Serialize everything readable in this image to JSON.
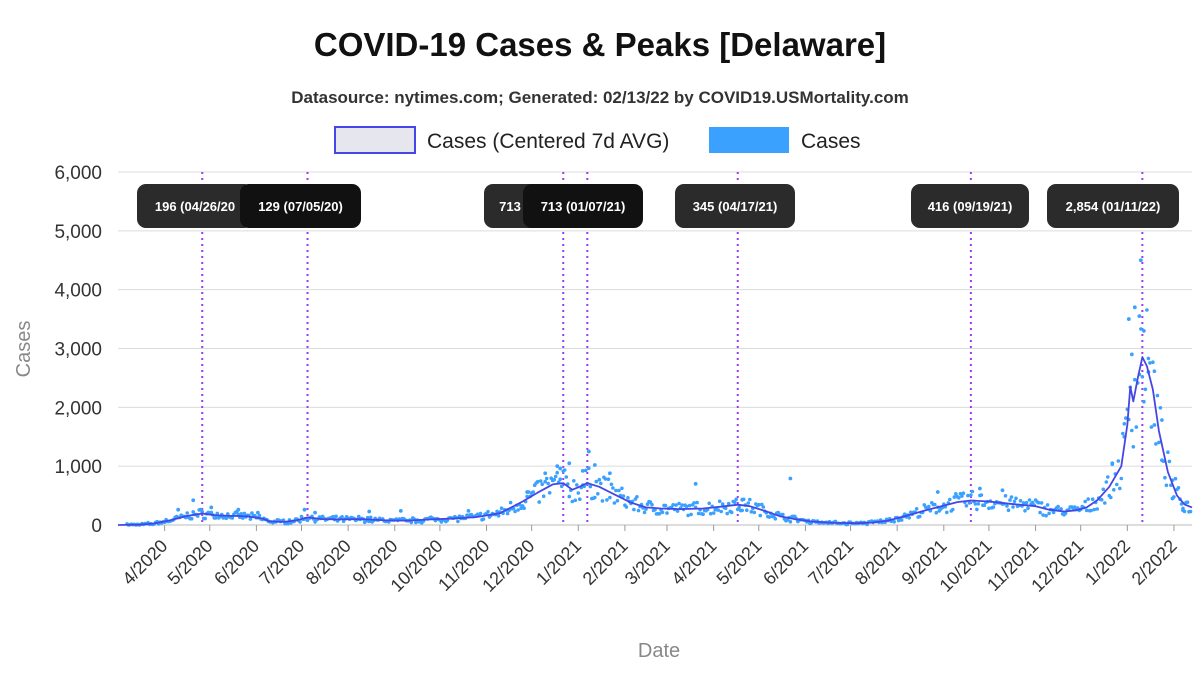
{
  "chart_data": {
    "type": "line",
    "title": "COVID-19 Cases & Peaks [Delaware]",
    "subtitle": "Datasource: nytimes.com; Generated: 02/13/22 by COVID19.USMortality.com",
    "xlabel": "Date",
    "ylabel": "Cases",
    "ylim": [
      0,
      6000
    ],
    "yticks": [
      0,
      1000,
      2000,
      3000,
      4000,
      5000,
      6000
    ],
    "ytick_labels": [
      "0",
      "1,000",
      "2,000",
      "3,000",
      "4,000",
      "5,000",
      "6,000"
    ],
    "xlim": [
      "2020-03-01",
      "2022-02-13"
    ],
    "xticks": [
      "2020-04-01",
      "2020-05-01",
      "2020-06-01",
      "2020-07-01",
      "2020-08-01",
      "2020-09-01",
      "2020-10-01",
      "2020-11-01",
      "2020-12-01",
      "2021-01-01",
      "2021-02-01",
      "2021-03-01",
      "2021-04-01",
      "2021-05-01",
      "2021-06-01",
      "2021-07-01",
      "2021-08-01",
      "2021-09-01",
      "2021-10-01",
      "2021-11-01",
      "2021-12-01",
      "2022-01-01",
      "2022-02-01"
    ],
    "xtick_labels": [
      "4/2020",
      "5/2020",
      "6/2020",
      "7/2020",
      "8/2020",
      "9/2020",
      "10/2020",
      "11/2020",
      "12/2020",
      "1/2021",
      "2/2021",
      "3/2021",
      "4/2021",
      "5/2021",
      "6/2021",
      "7/2021",
      "8/2021",
      "9/2021",
      "10/2021",
      "11/2021",
      "12/2021",
      "1/2022",
      "2/2022"
    ],
    "grid": "horizontal",
    "legend_position": "top-center",
    "colors": {
      "avg_line": "#4646e6",
      "points": "#3aa1ff",
      "peak_line": "#9b3cf0",
      "label_bg": "#2b2b2b"
    },
    "series": [
      {
        "name": "Cases (Centered 7d AVG)",
        "kind": "line",
        "points": [
          [
            "2020-03-01",
            0
          ],
          [
            "2020-03-15",
            5
          ],
          [
            "2020-03-25",
            25
          ],
          [
            "2020-04-05",
            80
          ],
          [
            "2020-04-15",
            150
          ],
          [
            "2020-04-26",
            196
          ],
          [
            "2020-05-05",
            165
          ],
          [
            "2020-05-15",
            155
          ],
          [
            "2020-05-25",
            150
          ],
          [
            "2020-06-05",
            110
          ],
          [
            "2020-06-10",
            60
          ],
          [
            "2020-06-20",
            55
          ],
          [
            "2020-06-28",
            80
          ],
          [
            "2020-07-05",
            129
          ],
          [
            "2020-07-15",
            100
          ],
          [
            "2020-07-25",
            95
          ],
          [
            "2020-08-10",
            100
          ],
          [
            "2020-08-25",
            80
          ],
          [
            "2020-09-10",
            75
          ],
          [
            "2020-09-25",
            95
          ],
          [
            "2020-10-10",
            110
          ],
          [
            "2020-10-25",
            135
          ],
          [
            "2020-11-10",
            200
          ],
          [
            "2020-11-25",
            400
          ],
          [
            "2020-12-05",
            550
          ],
          [
            "2020-12-15",
            690
          ],
          [
            "2020-12-22",
            713
          ],
          [
            "2020-12-28",
            600
          ],
          [
            "2021-01-01",
            640
          ],
          [
            "2021-01-07",
            713
          ],
          [
            "2021-01-15",
            650
          ],
          [
            "2021-01-25",
            520
          ],
          [
            "2021-02-05",
            380
          ],
          [
            "2021-02-15",
            300
          ],
          [
            "2021-02-25",
            280
          ],
          [
            "2021-03-10",
            270
          ],
          [
            "2021-03-25",
            280
          ],
          [
            "2021-04-05",
            310
          ],
          [
            "2021-04-17",
            345
          ],
          [
            "2021-04-25",
            320
          ],
          [
            "2021-05-05",
            240
          ],
          [
            "2021-05-15",
            150
          ],
          [
            "2021-05-25",
            100
          ],
          [
            "2021-06-05",
            60
          ],
          [
            "2021-06-20",
            35
          ],
          [
            "2021-07-05",
            30
          ],
          [
            "2021-07-15",
            40
          ],
          [
            "2021-07-25",
            70
          ],
          [
            "2021-08-05",
            140
          ],
          [
            "2021-08-20",
            250
          ],
          [
            "2021-09-01",
            330
          ],
          [
            "2021-09-10",
            390
          ],
          [
            "2021-09-19",
            416
          ],
          [
            "2021-10-01",
            400
          ],
          [
            "2021-10-15",
            360
          ],
          [
            "2021-11-01",
            320
          ],
          [
            "2021-11-10",
            260
          ],
          [
            "2021-11-20",
            230
          ],
          [
            "2021-11-28",
            250
          ],
          [
            "2021-12-05",
            300
          ],
          [
            "2021-12-12",
            420
          ],
          [
            "2021-12-20",
            650
          ],
          [
            "2021-12-28",
            1000
          ],
          [
            "2022-01-01",
            1700
          ],
          [
            "2022-01-03",
            2350
          ],
          [
            "2022-01-05",
            2100
          ],
          [
            "2022-01-08",
            2500
          ],
          [
            "2022-01-11",
            2854
          ],
          [
            "2022-01-14",
            2700
          ],
          [
            "2022-01-18",
            2300
          ],
          [
            "2022-01-22",
            1600
          ],
          [
            "2022-01-28",
            900
          ],
          [
            "2022-02-03",
            500
          ],
          [
            "2022-02-08",
            350
          ],
          [
            "2022-02-13",
            300
          ]
        ]
      },
      {
        "name": "Cases",
        "kind": "scatter",
        "points": [
          [
            "2020-04-20",
            420
          ],
          [
            "2020-04-10",
            260
          ],
          [
            "2020-05-02",
            300
          ],
          [
            "2020-05-20",
            260
          ],
          [
            "2020-06-02",
            210
          ],
          [
            "2020-07-03",
            260
          ],
          [
            "2020-07-10",
            210
          ],
          [
            "2020-08-15",
            230
          ],
          [
            "2020-09-05",
            240
          ],
          [
            "2020-10-20",
            240
          ],
          [
            "2020-11-28",
            560
          ],
          [
            "2020-12-10",
            880
          ],
          [
            "2020-12-18",
            1000
          ],
          [
            "2020-12-20",
            960
          ],
          [
            "2020-12-26",
            1050
          ],
          [
            "2021-01-04",
            920
          ],
          [
            "2021-01-08",
            1250
          ],
          [
            "2021-01-12",
            1020
          ],
          [
            "2021-01-22",
            880
          ],
          [
            "2021-03-20",
            700
          ],
          [
            "2021-04-20",
            430
          ],
          [
            "2021-05-22",
            790
          ],
          [
            "2021-08-28",
            560
          ],
          [
            "2021-09-25",
            620
          ],
          [
            "2021-10-10",
            590
          ],
          [
            "2021-12-22",
            1050
          ],
          [
            "2021-12-30",
            1500
          ],
          [
            "2022-01-02",
            3500
          ],
          [
            "2022-01-04",
            2900
          ],
          [
            "2022-01-06",
            3700
          ],
          [
            "2022-01-09",
            3550
          ],
          [
            "2022-01-10",
            4500
          ],
          [
            "2022-01-12",
            3300
          ],
          [
            "2022-01-15",
            2600
          ],
          [
            "2022-01-19",
            1700
          ],
          [
            "2022-01-24",
            1100
          ],
          [
            "2022-01-31",
            450
          ],
          [
            "2022-02-07",
            250
          ]
        ]
      }
    ],
    "peaks": [
      {
        "date": "2020-04-26",
        "label": "196 (04/26/20)",
        "shown": "196 (04/26/20"
      },
      {
        "date": "2020-07-05",
        "label": "129 (07/05/20)",
        "shown": "129 (07/05/20)"
      },
      {
        "date": "2020-12-22",
        "label": "713 (",
        "shown": "713 ("
      },
      {
        "date": "2021-01-07",
        "label": "713 (01/07/21)",
        "shown": "713 (01/07/21)"
      },
      {
        "date": "2021-04-17",
        "label": "345 (04/17/21)",
        "shown": "345 (04/17/21)"
      },
      {
        "date": "2021-09-19",
        "label": "416 (09/19/21)",
        "shown": "416 (09/19/21)"
      },
      {
        "date": "2022-01-11",
        "label": "2,854 (01/11/22)",
        "shown": "2,854 (01/11/22)"
      }
    ]
  }
}
